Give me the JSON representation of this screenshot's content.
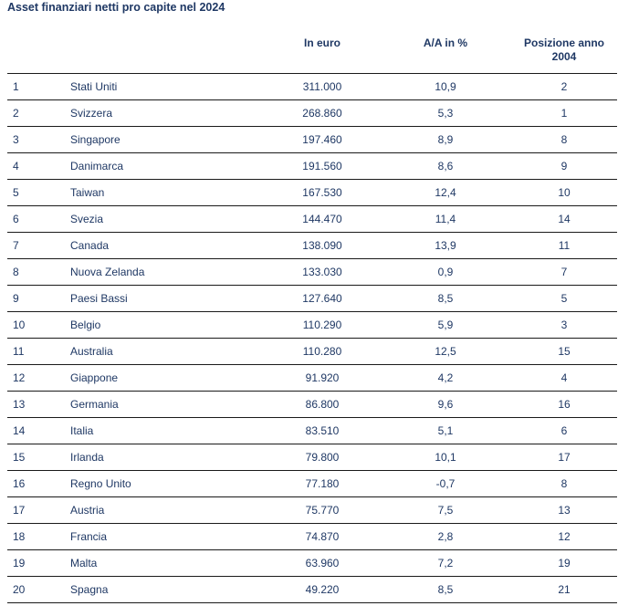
{
  "title": "Asset finanziari netti pro capite nel 2024",
  "columns": {
    "euro": "In euro",
    "aa": "A/A in %",
    "pos_line1": "Posizione anno",
    "pos_line2": "2004"
  },
  "rows": [
    {
      "rank": "1",
      "country": "Stati Uniti",
      "euro": "311.000",
      "aa": "10,9",
      "pos": "2"
    },
    {
      "rank": "2",
      "country": "Svizzera",
      "euro": "268.860",
      "aa": "5,3",
      "pos": "1"
    },
    {
      "rank": "3",
      "country": "Singapore",
      "euro": "197.460",
      "aa": "8,9",
      "pos": "8"
    },
    {
      "rank": "4",
      "country": "Danimarca",
      "euro": "191.560",
      "aa": "8,6",
      "pos": "9"
    },
    {
      "rank": "5",
      "country": "Taiwan",
      "euro": "167.530",
      "aa": "12,4",
      "pos": "10"
    },
    {
      "rank": "6",
      "country": "Svezia",
      "euro": "144.470",
      "aa": "11,4",
      "pos": "14"
    },
    {
      "rank": "7",
      "country": "Canada",
      "euro": "138.090",
      "aa": "13,9",
      "pos": "11"
    },
    {
      "rank": "8",
      "country": "Nuova Zelanda",
      "euro": "133.030",
      "aa": "0,9",
      "pos": "7"
    },
    {
      "rank": "9",
      "country": "Paesi Bassi",
      "euro": "127.640",
      "aa": "8,5",
      "pos": "5"
    },
    {
      "rank": "10",
      "country": "Belgio",
      "euro": "110.290",
      "aa": "5,9",
      "pos": "3"
    },
    {
      "rank": "11",
      "country": "Australia",
      "euro": "110.280",
      "aa": "12,5",
      "pos": "15"
    },
    {
      "rank": "12",
      "country": "Giappone",
      "euro": "91.920",
      "aa": "4,2",
      "pos": "4"
    },
    {
      "rank": "13",
      "country": "Germania",
      "euro": "86.800",
      "aa": "9,6",
      "pos": "16"
    },
    {
      "rank": "14",
      "country": "Italia",
      "euro": "83.510",
      "aa": "5,1",
      "pos": "6"
    },
    {
      "rank": "15",
      "country": "Irlanda",
      "euro": "79.800",
      "aa": "10,1",
      "pos": "17"
    },
    {
      "rank": "16",
      "country": "Regno Unito",
      "euro": "77.180",
      "aa": "-0,7",
      "pos": "8"
    },
    {
      "rank": "17",
      "country": "Austria",
      "euro": "75.770",
      "aa": "7,5",
      "pos": "13"
    },
    {
      "rank": "18",
      "country": "Francia",
      "euro": "74.870",
      "aa": "2,8",
      "pos": "12"
    },
    {
      "rank": "19",
      "country": "Malta",
      "euro": "63.960",
      "aa": "7,2",
      "pos": "19"
    },
    {
      "rank": "20",
      "country": "Spagna",
      "euro": "49.220",
      "aa": "8,5",
      "pos": "21"
    }
  ]
}
